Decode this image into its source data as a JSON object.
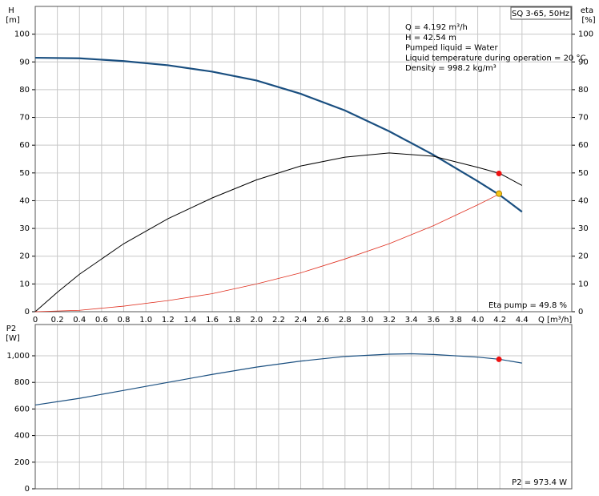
{
  "chart_data": [
    {
      "type": "line",
      "title": "SQ 3-65, 50Hz",
      "ylabel": "H",
      "yunit": "[m]",
      "y2label": "eta",
      "y2unit": "[%]",
      "xlabel": "Q [m³/h]",
      "annotations": [
        "Q = 4.192 m³/h",
        "H = 42.54 m",
        "Pumped liquid = Water",
        "Liquid temperature during operation = 20 °C",
        "Density = 998.2 kg/m³"
      ],
      "footnote": "Eta pump = 49.8 %",
      "xlim": [
        0,
        4.85
      ],
      "xticks": [
        0,
        0.2,
        0.4,
        0.6,
        0.8,
        {
          "value": 1,
          "label": "1.0"
        },
        1.2,
        1.4,
        1.6,
        1.8,
        {
          "value": 2,
          "label": "2.0"
        },
        2.2,
        2.4,
        2.6,
        2.8,
        {
          "value": 3,
          "label": "3.0"
        },
        3.2,
        3.4,
        3.6,
        3.8,
        {
          "value": 4,
          "label": "4.0"
        },
        4.2,
        4.4
      ],
      "ylim": [
        0,
        110
      ],
      "yticks": [
        0,
        10,
        20,
        30,
        40,
        50,
        60,
        70,
        80,
        90,
        100
      ],
      "y2lim": [
        0,
        110
      ],
      "y2ticks": [
        0,
        10,
        20,
        30,
        40,
        50,
        60,
        70,
        80,
        90,
        100
      ],
      "grid": true,
      "series": [
        {
          "color": "#1a4f80",
          "width": 2.2,
          "x": [
            0,
            0.4,
            0.8,
            1.2,
            1.6,
            2.0,
            2.4,
            2.8,
            3.2,
            3.6,
            4.0,
            4.2,
            4.4
          ],
          "values": [
            91.5,
            91.3,
            90.3,
            88.8,
            86.5,
            83.3,
            78.5,
            72.5,
            65,
            56.5,
            47,
            42,
            36
          ]
        },
        {
          "color": "#000000",
          "width": 1,
          "axis": "y2",
          "x": [
            0,
            0.2,
            0.4,
            0.8,
            1.2,
            1.6,
            2.0,
            2.4,
            2.8,
            3.2,
            3.6,
            4.0,
            4.2,
            4.4
          ],
          "values": [
            0,
            7,
            13.5,
            24.5,
            33.5,
            41,
            47.5,
            52.5,
            55.7,
            57.2,
            56,
            52,
            49.8,
            45.5
          ]
        },
        {
          "color": "#e03020",
          "width": 0.8,
          "x": [
            0,
            0.4,
            0.8,
            1.2,
            1.6,
            2.0,
            2.4,
            2.8,
            3.2,
            3.6,
            4.0,
            4.2
          ],
          "values": [
            0,
            0.5,
            2,
            4,
            6.5,
            10,
            14,
            19,
            24.5,
            31,
            38.5,
            42.5
          ]
        }
      ],
      "markers": [
        {
          "x": 4.192,
          "value": 49.8,
          "color": "#ee1111",
          "axis": "y2"
        },
        {
          "x": 4.192,
          "value": 42.54,
          "color": "#f5c518"
        }
      ]
    },
    {
      "type": "line",
      "ylabel": "P2",
      "yunit": "[W]",
      "footnote": "P2 = 973.4 W",
      "xlim": [
        0,
        4.85
      ],
      "xticks": [
        0,
        0.2,
        0.4,
        0.6,
        0.8,
        1,
        1.2,
        1.4,
        1.6,
        1.8,
        2,
        2.2,
        2.4,
        2.6,
        2.8,
        3,
        3.2,
        3.4,
        3.6,
        3.8,
        4,
        4.2,
        4.4
      ],
      "ylim": [
        0,
        1235
      ],
      "yticks": [
        0,
        200,
        400,
        600,
        800,
        {
          "value": 1000,
          "label": "1,000"
        }
      ],
      "grid": true,
      "series": [
        {
          "color": "#1a4f80",
          "width": 1.2,
          "x": [
            0,
            0.4,
            0.8,
            1.2,
            1.6,
            2.0,
            2.4,
            2.8,
            3.2,
            3.4,
            3.6,
            4.0,
            4.2,
            4.4
          ],
          "values": [
            630,
            680,
            740,
            800,
            860,
            915,
            960,
            995,
            1012,
            1015,
            1010,
            990,
            973.4,
            945
          ]
        }
      ],
      "markers": [
        {
          "x": 4.192,
          "value": 973.4,
          "color": "#ee1111"
        }
      ]
    }
  ]
}
